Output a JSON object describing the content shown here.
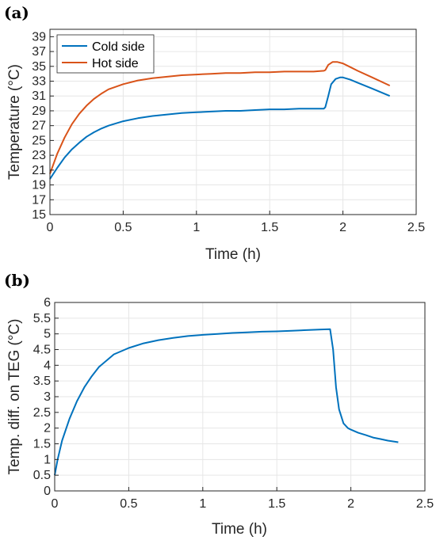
{
  "chart_data": [
    {
      "panel_label": "(a)",
      "type": "line",
      "xlabel": "Time (h)",
      "ylabel": "Temperature (°C)",
      "xlim": [
        0,
        2.5
      ],
      "ylim": [
        15,
        40
      ],
      "xticks": [
        0,
        0.5,
        1,
        1.5,
        2,
        2.5
      ],
      "xtick_labels": [
        "0",
        "0.5",
        "1",
        "1.5",
        "2",
        "2.5"
      ],
      "yticks": [
        15,
        17,
        19,
        21,
        23,
        25,
        27,
        29,
        31,
        33,
        35,
        37,
        39
      ],
      "ytick_labels": [
        "15",
        "17",
        "19",
        "21",
        "23",
        "25",
        "27",
        "29",
        "31",
        "33",
        "35",
        "37",
        "39"
      ],
      "grid": true,
      "legend_position": "top-left",
      "series": [
        {
          "name": "Cold side",
          "color": "#0072BD",
          "x": [
            0,
            0.05,
            0.1,
            0.15,
            0.2,
            0.25,
            0.3,
            0.35,
            0.4,
            0.5,
            0.6,
            0.7,
            0.8,
            0.9,
            1.0,
            1.1,
            1.2,
            1.3,
            1.4,
            1.5,
            1.6,
            1.7,
            1.8,
            1.87,
            1.88,
            1.9,
            1.92,
            1.95,
            1.98,
            2.0,
            2.05,
            2.1,
            2.2,
            2.32
          ],
          "y": [
            19.8,
            21.3,
            22.7,
            23.8,
            24.7,
            25.5,
            26.1,
            26.6,
            27.0,
            27.6,
            28.0,
            28.3,
            28.5,
            28.7,
            28.8,
            28.9,
            29.0,
            29.0,
            29.1,
            29.2,
            29.2,
            29.3,
            29.3,
            29.3,
            29.5,
            31.0,
            32.6,
            33.3,
            33.5,
            33.5,
            33.2,
            32.8,
            32.0,
            31.0
          ]
        },
        {
          "name": "Hot side",
          "color": "#D95319",
          "x": [
            0,
            0.05,
            0.1,
            0.15,
            0.2,
            0.25,
            0.3,
            0.35,
            0.4,
            0.5,
            0.6,
            0.7,
            0.8,
            0.9,
            1.0,
            1.1,
            1.2,
            1.3,
            1.4,
            1.5,
            1.6,
            1.7,
            1.8,
            1.87,
            1.88,
            1.9,
            1.93,
            1.96,
            2.0,
            2.05,
            2.1,
            2.2,
            2.32
          ],
          "y": [
            20.5,
            23.2,
            25.4,
            27.2,
            28.6,
            29.7,
            30.6,
            31.3,
            31.9,
            32.6,
            33.1,
            33.4,
            33.6,
            33.8,
            33.9,
            34.0,
            34.1,
            34.1,
            34.2,
            34.2,
            34.3,
            34.3,
            34.3,
            34.4,
            34.5,
            35.2,
            35.6,
            35.6,
            35.4,
            34.9,
            34.4,
            33.5,
            32.4
          ]
        }
      ]
    },
    {
      "panel_label": "(b)",
      "type": "line",
      "xlabel": "Time (h)",
      "ylabel": "Temp. diff. on TEG (°C)",
      "xlim": [
        0,
        2.5
      ],
      "ylim": [
        0,
        6
      ],
      "xticks": [
        0,
        0.5,
        1,
        1.5,
        2,
        2.5
      ],
      "xtick_labels": [
        "0",
        "0.5",
        "1",
        "1.5",
        "2",
        "2.5"
      ],
      "yticks": [
        0,
        0.5,
        1,
        1.5,
        2,
        2.5,
        3,
        3.5,
        4,
        4.5,
        5,
        5.5,
        6
      ],
      "ytick_labels": [
        "0",
        "0.5",
        "1",
        "1.5",
        "2",
        "2.5",
        "3",
        "3.5",
        "4",
        "4.5",
        "5",
        "5.5",
        "6"
      ],
      "grid": true,
      "series": [
        {
          "color": "#0072BD",
          "x": [
            0,
            0.02,
            0.05,
            0.1,
            0.15,
            0.2,
            0.25,
            0.3,
            0.35,
            0.4,
            0.45,
            0.5,
            0.6,
            0.7,
            0.8,
            0.9,
            1.0,
            1.1,
            1.2,
            1.3,
            1.4,
            1.5,
            1.6,
            1.7,
            1.8,
            1.86,
            1.88,
            1.9,
            1.92,
            1.95,
            1.98,
            2.0,
            2.05,
            2.1,
            2.15,
            2.2,
            2.25,
            2.32
          ],
          "y": [
            0.5,
            1.0,
            1.6,
            2.3,
            2.85,
            3.3,
            3.65,
            3.95,
            4.15,
            4.35,
            4.45,
            4.55,
            4.7,
            4.8,
            4.87,
            4.93,
            4.97,
            5.0,
            5.03,
            5.05,
            5.07,
            5.08,
            5.1,
            5.12,
            5.14,
            5.15,
            4.5,
            3.3,
            2.6,
            2.15,
            2.0,
            1.95,
            1.85,
            1.78,
            1.7,
            1.65,
            1.6,
            1.55
          ]
        }
      ]
    }
  ]
}
